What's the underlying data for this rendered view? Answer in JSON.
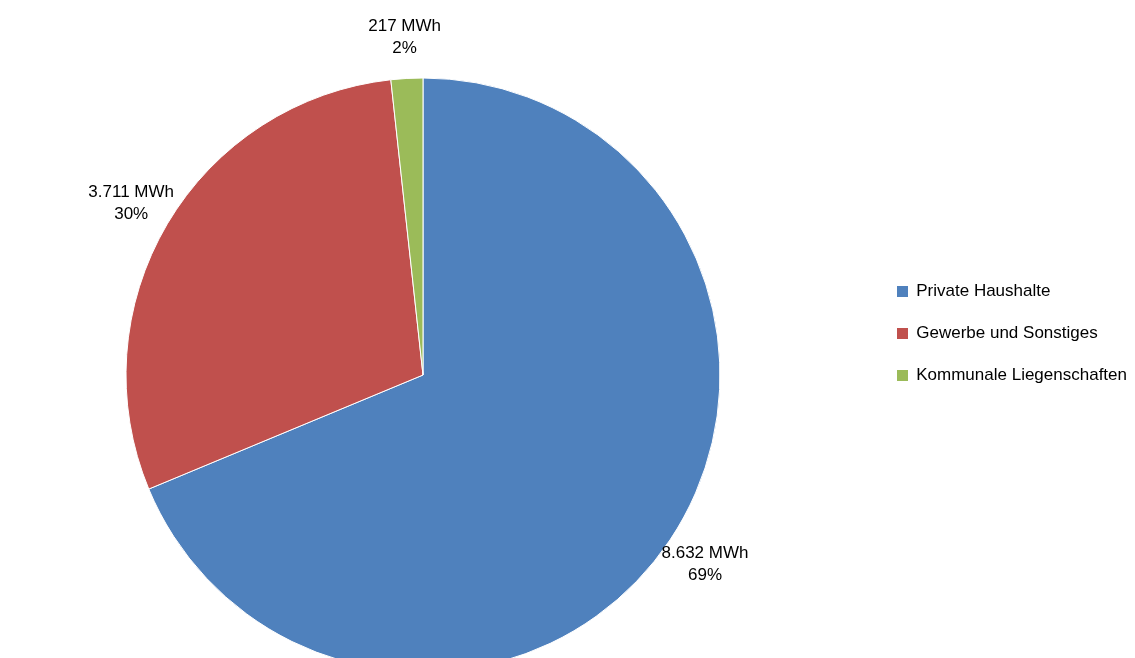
{
  "chart_data": {
    "type": "pie",
    "categories": [
      "Private Haushalte",
      "Gewerbe und Sonstiges",
      "Kommunale Liegenschaften"
    ],
    "values": [
      8632,
      3711,
      217
    ],
    "colors": [
      "#4f81bd",
      "#c0504d",
      "#9bbb59"
    ],
    "value_labels": [
      "8.632 MWh\n69%",
      "3.711 MWh\n30%",
      "217 MWh\n2%"
    ],
    "legend": "right"
  }
}
